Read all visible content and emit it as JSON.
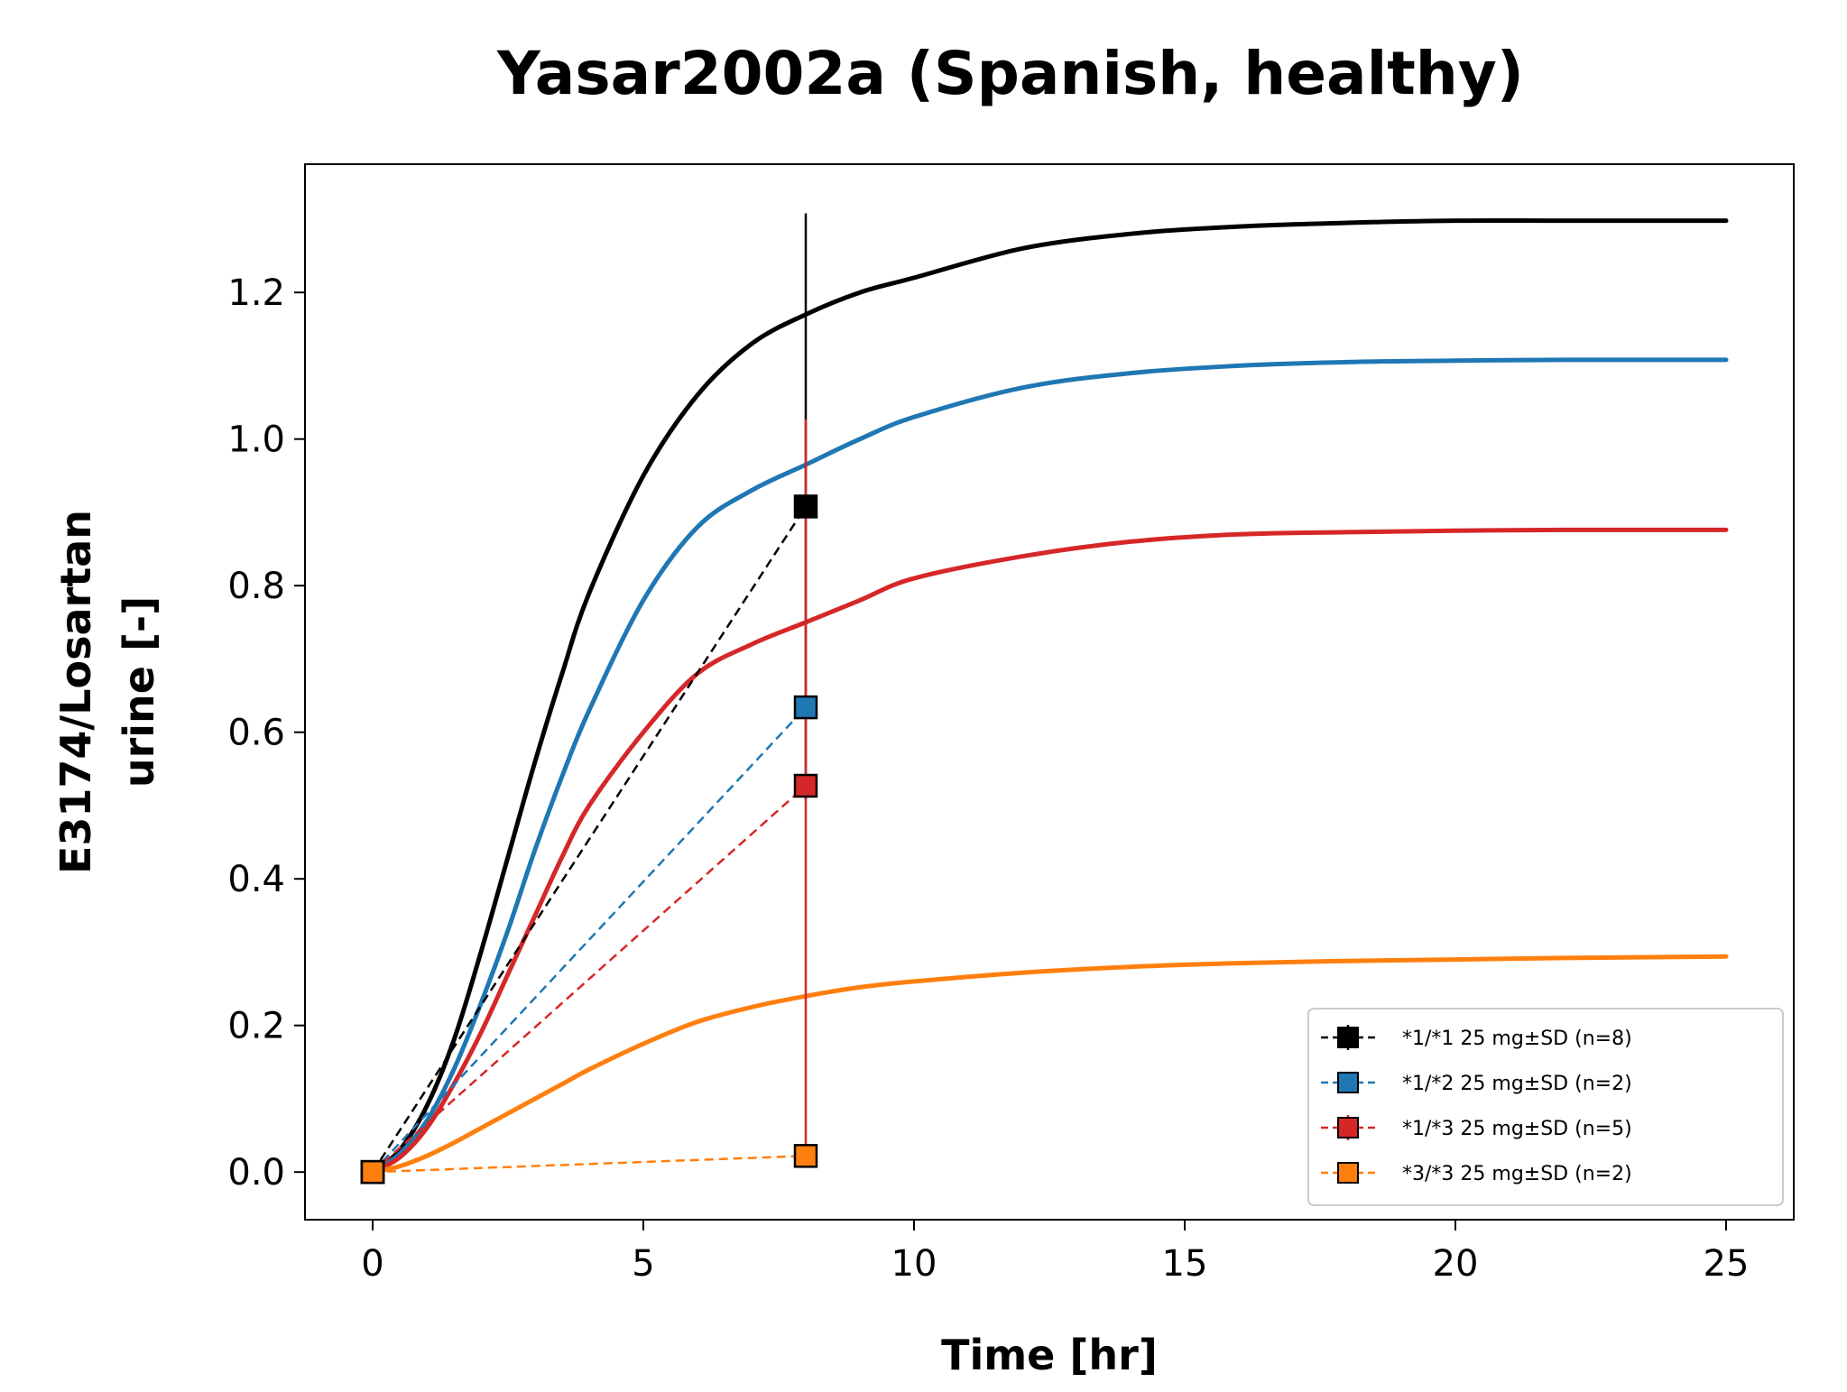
{
  "chart_data": {
    "type": "line",
    "title": "Yasar2002a (Spanish, healthy)",
    "xlabel": "Time [hr]",
    "ylabel_lines": [
      "E3174/Losartan",
      "urine [-]"
    ],
    "xlim": [
      -1.25,
      26.25
    ],
    "ylim": [
      -0.065,
      1.375
    ],
    "xticks": [
      0,
      5,
      10,
      15,
      20,
      25
    ],
    "xtick_labels": [
      "0",
      "5",
      "10",
      "15",
      "20",
      "25"
    ],
    "yticks": [
      0.0,
      0.2,
      0.4,
      0.6,
      0.8,
      1.0,
      1.2
    ],
    "ytick_labels": [
      "0.0",
      "0.2",
      "0.4",
      "0.6",
      "0.8",
      "1.0",
      "1.2"
    ],
    "grid": false,
    "legend_position": "lower-right",
    "model_curves": [
      {
        "color": "#000000",
        "x": [
          0,
          0.5,
          1,
          1.5,
          2,
          2.5,
          3,
          3.5,
          4,
          5,
          6,
          7,
          8,
          9,
          10,
          12,
          14,
          16,
          18,
          20,
          22,
          25
        ],
        "y": [
          0,
          0.03,
          0.09,
          0.18,
          0.3,
          0.43,
          0.56,
          0.68,
          0.79,
          0.95,
          1.06,
          1.13,
          1.17,
          1.2,
          1.22,
          1.26,
          1.28,
          1.29,
          1.295,
          1.298,
          1.298,
          1.298
        ]
      },
      {
        "color": "#1f77b4",
        "x": [
          0,
          0.5,
          1,
          1.5,
          2,
          2.5,
          3,
          3.5,
          4,
          5,
          6,
          7,
          8,
          9,
          10,
          12,
          14,
          16,
          18,
          20,
          22,
          25
        ],
        "y": [
          0,
          0.025,
          0.07,
          0.14,
          0.23,
          0.33,
          0.44,
          0.54,
          0.63,
          0.78,
          0.88,
          0.93,
          0.965,
          1.0,
          1.03,
          1.07,
          1.09,
          1.1,
          1.105,
          1.107,
          1.108,
          1.108
        ]
      },
      {
        "color": "#d62728",
        "x": [
          0,
          0.5,
          1,
          1.5,
          2,
          2.5,
          3,
          3.5,
          4,
          5,
          6,
          7,
          8,
          9,
          10,
          12,
          14,
          16,
          18,
          20,
          22,
          25
        ],
        "y": [
          0,
          0.02,
          0.06,
          0.12,
          0.19,
          0.27,
          0.35,
          0.43,
          0.5,
          0.6,
          0.68,
          0.72,
          0.75,
          0.78,
          0.81,
          0.84,
          0.86,
          0.87,
          0.873,
          0.875,
          0.876,
          0.876
        ]
      },
      {
        "color": "#ff7f0e",
        "x": [
          0,
          0.5,
          1,
          1.5,
          2,
          2.5,
          3,
          3.5,
          4,
          5,
          6,
          7,
          8,
          9,
          10,
          12,
          14,
          16,
          18,
          20,
          22,
          25
        ],
        "y": [
          0,
          0.008,
          0.022,
          0.04,
          0.06,
          0.08,
          0.1,
          0.12,
          0.14,
          0.175,
          0.205,
          0.225,
          0.24,
          0.252,
          0.26,
          0.272,
          0.28,
          0.285,
          0.288,
          0.29,
          0.292,
          0.294
        ]
      }
    ],
    "series": [
      {
        "name": "*1/*1 25 mg±SD (n=8)",
        "color": "#000000",
        "x": [
          0,
          8
        ],
        "y": [
          0.0,
          0.908
        ],
        "err": [
          0.0,
          0.4
        ]
      },
      {
        "name": "*1/*2 25 mg±SD (n=2)",
        "color": "#1f77b4",
        "x": [
          0,
          8
        ],
        "y": [
          0.0,
          0.634
        ],
        "err": [
          0.0,
          0.0
        ]
      },
      {
        "name": "*1/*3 25 mg±SD (n=5)",
        "color": "#d62728",
        "x": [
          0,
          8
        ],
        "y": [
          0.0,
          0.527
        ],
        "err": [
          0.0,
          0.5
        ]
      },
      {
        "name": "*3/*3 25 mg±SD (n=2)",
        "color": "#ff7f0e",
        "x": [
          0,
          8
        ],
        "y": [
          0.0,
          0.022
        ],
        "err": [
          0.0,
          0.0
        ]
      }
    ]
  }
}
